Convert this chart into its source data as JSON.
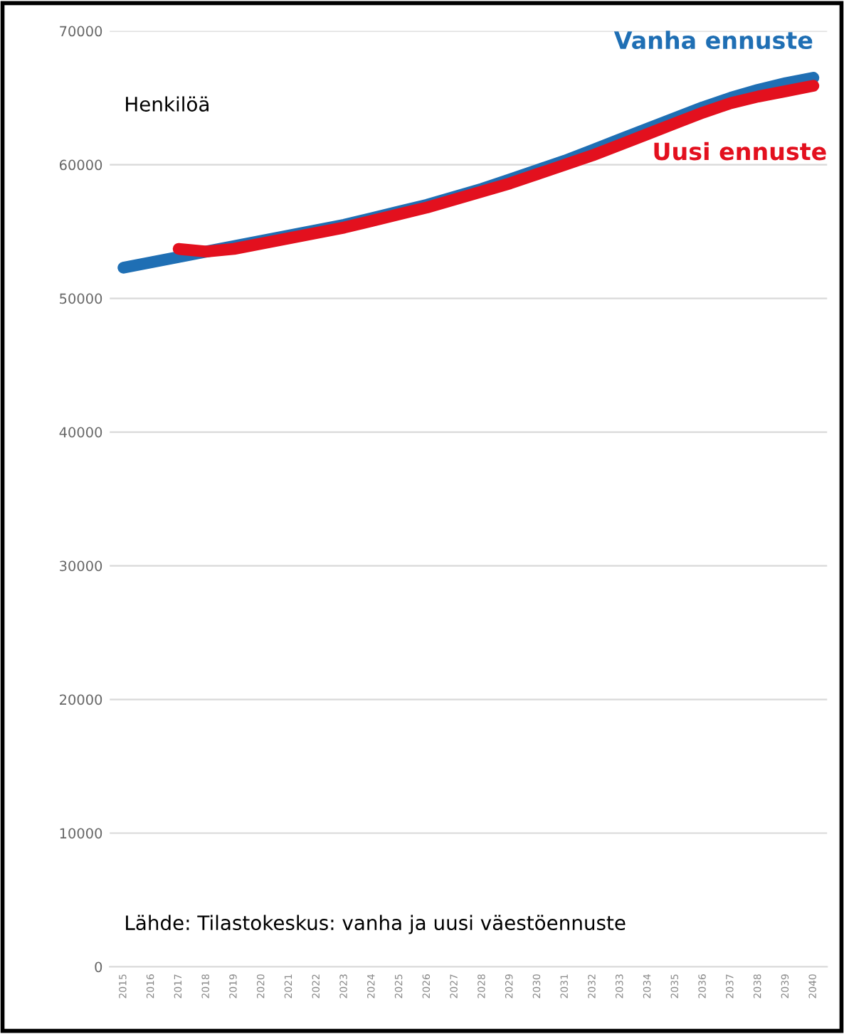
{
  "chart_data": {
    "type": "line",
    "ylabel": "Henkilöä",
    "categories": [
      "2015",
      "2016",
      "2017",
      "2018",
      "2019",
      "2020",
      "2021",
      "2022",
      "2023",
      "2024",
      "2025",
      "2026",
      "2027",
      "2028",
      "2029",
      "2030",
      "2031",
      "2032",
      "2033",
      "2034",
      "2035",
      "2036",
      "2037",
      "2038",
      "2039",
      "2040"
    ],
    "series": [
      {
        "name": "Vanha ennuste",
        "color": "#1f6fb4",
        "values": [
          52300,
          52700,
          53100,
          53500,
          53900,
          54300,
          54700,
          55100,
          55500,
          56000,
          56500,
          57000,
          57600,
          58200,
          58900,
          59600,
          60300,
          61100,
          61900,
          62700,
          63500,
          64300,
          65000,
          65600,
          66100,
          66500
        ]
      },
      {
        "name": "Uusi ennuste",
        "color": "#e3101e",
        "values": [
          null,
          null,
          53700,
          53500,
          53700,
          54100,
          54500,
          54900,
          55300,
          55800,
          56300,
          56800,
          57400,
          58000,
          58600,
          59300,
          60000,
          60700,
          61500,
          62300,
          63100,
          63900,
          64600,
          65100,
          65500,
          65900
        ]
      }
    ],
    "ylim": [
      0,
      70000
    ],
    "yticks": [
      0,
      10000,
      20000,
      30000,
      40000,
      50000,
      60000,
      70000
    ],
    "grid": "y",
    "legend": false,
    "line_style": "solid",
    "marker": "none",
    "annotations": [
      "Lähde: Tilastokeskus: vanha ja uusi väestöennuste"
    ]
  }
}
